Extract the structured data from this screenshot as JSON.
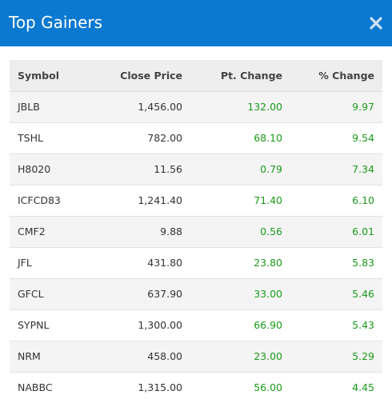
{
  "modal": {
    "title": "Top Gainers",
    "close_icon": "close-icon"
  },
  "colors": {
    "header_bg": "#0b79d0",
    "positive": "#1a9a1a"
  },
  "table": {
    "columns": [
      "Symbol",
      "Close Price",
      "Pt. Change",
      "% Change"
    ],
    "rows": [
      {
        "symbol": "JBLB",
        "close": "1,456.00",
        "pt": "132.00",
        "pct": "9.97"
      },
      {
        "symbol": "TSHL",
        "close": "782.00",
        "pt": "68.10",
        "pct": "9.54"
      },
      {
        "symbol": "H8020",
        "close": "11.56",
        "pt": "0.79",
        "pct": "7.34"
      },
      {
        "symbol": "ICFCD83",
        "close": "1,241.40",
        "pt": "71.40",
        "pct": "6.10"
      },
      {
        "symbol": "CMF2",
        "close": "9.88",
        "pt": "0.56",
        "pct": "6.01"
      },
      {
        "symbol": "JFL",
        "close": "431.80",
        "pt": "23.80",
        "pct": "5.83"
      },
      {
        "symbol": "GFCL",
        "close": "637.90",
        "pt": "33.00",
        "pct": "5.46"
      },
      {
        "symbol": "SYPNL",
        "close": "1,300.00",
        "pt": "66.90",
        "pct": "5.43"
      },
      {
        "symbol": "NRM",
        "close": "458.00",
        "pt": "23.00",
        "pct": "5.29"
      },
      {
        "symbol": "NABBC",
        "close": "1,315.00",
        "pt": "56.00",
        "pct": "4.45"
      }
    ]
  }
}
